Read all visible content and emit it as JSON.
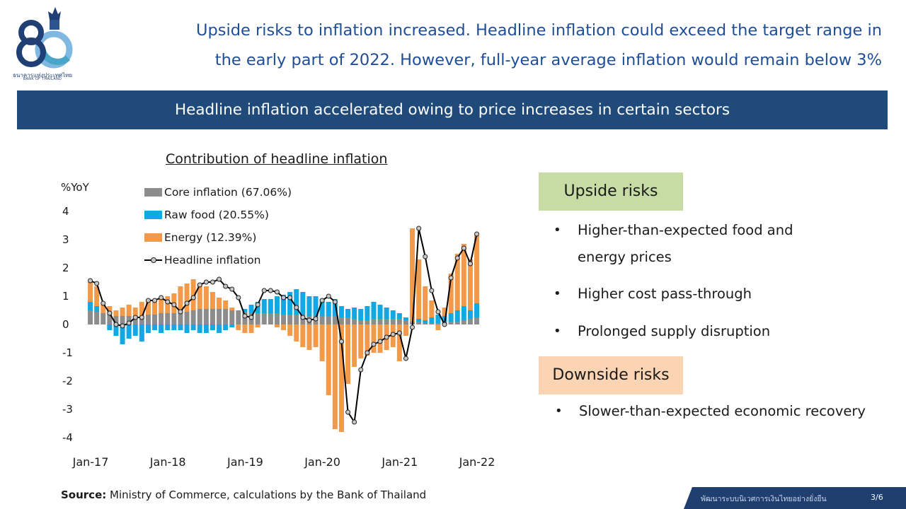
{
  "logo": {
    "number": "80",
    "thai_name": "ธนาคารแห่งประเทศไทย",
    "english_name": "BANK OF THAILAND",
    "icon": "bank-of-thailand-80-years-logo"
  },
  "headline": {
    "line1": "Upside risks to inflation increased. Headline inflation could exceed the target range in",
    "line2": "the early part of 2022. However, full-year average inflation would remain below 3%"
  },
  "banner": "Headline inflation accelerated owing to price increases in certain sectors",
  "chart_data": {
    "type": "bar",
    "stacked": true,
    "title": "Contribution of headline inflation",
    "ylabel": "%YoY",
    "xlabel": "",
    "ylim": [
      -4,
      4
    ],
    "yticks": [
      4,
      3,
      2,
      1,
      0,
      -1,
      -2,
      -3,
      -4
    ],
    "xtick_labels": [
      "Jan-17",
      "Jan-18",
      "Jan-19",
      "Jan-20",
      "Jan-21",
      "Jan-22"
    ],
    "grid": false,
    "legend_position": "top-left",
    "categories": [
      "Jan-17",
      "Feb-17",
      "Mar-17",
      "Apr-17",
      "May-17",
      "Jun-17",
      "Jul-17",
      "Aug-17",
      "Sep-17",
      "Oct-17",
      "Nov-17",
      "Dec-17",
      "Jan-18",
      "Feb-18",
      "Mar-18",
      "Apr-18",
      "May-18",
      "Jun-18",
      "Jul-18",
      "Aug-18",
      "Sep-18",
      "Oct-18",
      "Nov-18",
      "Dec-18",
      "Jan-19",
      "Feb-19",
      "Mar-19",
      "Apr-19",
      "May-19",
      "Jun-19",
      "Jul-19",
      "Aug-19",
      "Sep-19",
      "Oct-19",
      "Nov-19",
      "Dec-19",
      "Jan-20",
      "Feb-20",
      "Mar-20",
      "Apr-20",
      "May-20",
      "Jun-20",
      "Jul-20",
      "Aug-20",
      "Sep-20",
      "Oct-20",
      "Nov-20",
      "Dec-20",
      "Jan-21",
      "Feb-21",
      "Mar-21",
      "Apr-21",
      "May-21",
      "Jun-21",
      "Jul-21",
      "Aug-21",
      "Sep-21",
      "Oct-21",
      "Nov-21",
      "Dec-21",
      "Jan-22"
    ],
    "series": [
      {
        "name": "Core inflation (67.06%)",
        "color": "#8c8c8c",
        "values": [
          0.5,
          0.45,
          0.4,
          0.35,
          0.3,
          0.3,
          0.3,
          0.3,
          0.3,
          0.35,
          0.35,
          0.4,
          0.4,
          0.4,
          0.45,
          0.45,
          0.5,
          0.55,
          0.55,
          0.55,
          0.55,
          0.55,
          0.5,
          0.5,
          0.45,
          0.4,
          0.4,
          0.4,
          0.4,
          0.4,
          0.35,
          0.35,
          0.35,
          0.35,
          0.3,
          0.3,
          0.3,
          0.3,
          0.3,
          0.25,
          0.25,
          0.2,
          0.15,
          0.15,
          0.2,
          0.2,
          0.2,
          0.2,
          0.2,
          0.15,
          0.1,
          0.1,
          0.05,
          0.05,
          0.05,
          0.1,
          0.1,
          0.1,
          0.15,
          0.2,
          0.25
        ]
      },
      {
        "name": "Raw food (20.55%)",
        "color": "#12a8e3",
        "values": [
          0.3,
          0.2,
          0.0,
          -0.2,
          -0.4,
          -0.7,
          -0.5,
          -0.4,
          -0.6,
          -0.3,
          -0.2,
          -0.3,
          -0.2,
          -0.2,
          -0.2,
          -0.3,
          -0.2,
          -0.3,
          -0.3,
          -0.2,
          -0.3,
          -0.2,
          -0.1,
          0.0,
          0.1,
          0.3,
          0.4,
          0.5,
          0.5,
          0.6,
          0.7,
          0.8,
          0.9,
          0.8,
          0.7,
          0.7,
          0.6,
          0.5,
          0.6,
          0.4,
          0.3,
          0.4,
          0.4,
          0.5,
          0.6,
          0.5,
          0.4,
          0.3,
          0.2,
          0.1,
          0.0,
          0.1,
          0.1,
          0.2,
          0.3,
          0.2,
          0.3,
          0.4,
          0.5,
          0.3,
          0.5
        ]
      },
      {
        "name": "Energy (12.39%)",
        "color": "#f29a4a",
        "values": [
          0.7,
          0.7,
          0.3,
          0.3,
          0.2,
          0.3,
          0.4,
          0.3,
          0.5,
          0.5,
          0.5,
          0.5,
          0.6,
          0.7,
          0.9,
          1.0,
          1.1,
          0.9,
          0.8,
          0.6,
          0.4,
          0.3,
          0.1,
          -0.2,
          -0.3,
          -0.3,
          -0.1,
          0.0,
          0.0,
          -0.1,
          -0.2,
          -0.4,
          -0.6,
          -0.8,
          -0.9,
          -0.8,
          -1.3,
          -2.5,
          -3.7,
          -3.8,
          -2.1,
          -1.5,
          -1.2,
          -1.1,
          -1.0,
          -1.0,
          -0.9,
          -0.8,
          -1.3,
          -0.4,
          3.3,
          2.1,
          1.2,
          0.6,
          -0.2,
          0.3,
          1.4,
          2.0,
          2.2,
          1.8,
          2.4
        ]
      }
    ],
    "line": {
      "name": "Headline inflation",
      "values": [
        1.55,
        1.45,
        0.75,
        0.4,
        0.0,
        -0.05,
        0.05,
        0.25,
        0.25,
        0.85,
        0.85,
        0.95,
        0.8,
        0.7,
        0.45,
        0.75,
        0.95,
        1.4,
        1.5,
        1.5,
        1.6,
        1.35,
        1.25,
        0.95,
        0.3,
        0.25,
        0.7,
        1.2,
        1.2,
        1.15,
        0.95,
        0.95,
        0.6,
        0.25,
        0.15,
        0.2,
        0.85,
        1.0,
        0.8,
        -0.6,
        -3.1,
        -3.45,
        -1.6,
        -1.0,
        -0.7,
        -0.6,
        -0.45,
        -0.35,
        -0.3,
        -1.2,
        -0.1,
        3.4,
        2.4,
        1.2,
        0.45,
        0.0,
        1.65,
        2.35,
        2.7,
        2.15,
        3.2
      ]
    }
  },
  "risks": {
    "upside_label": "Upside risks",
    "upside_items": [
      "Higher-than-expected food and",
      "energy prices",
      "Higher cost pass-through",
      "Prolonged supply disruption"
    ],
    "downside_label": "Downside risks",
    "downside_items": [
      "Slower-than-expected economic recovery"
    ],
    "bullet_symbol": "•"
  },
  "source": {
    "label": "Source:",
    "text": "Ministry of Commerce, calculations by the Bank of Thailand"
  },
  "footer": {
    "tagline": "พัฒนาระบบนิเวศการเงินไทยอย่างยั่งยืน",
    "page": "3/6"
  },
  "colors": {
    "headline_text": "#1f4e96",
    "banner_bg": "#1f4a7a",
    "upside_bg": "#c6dca4",
    "downside_bg": "#fad4b3",
    "footer_bg": "#1f3f70"
  }
}
